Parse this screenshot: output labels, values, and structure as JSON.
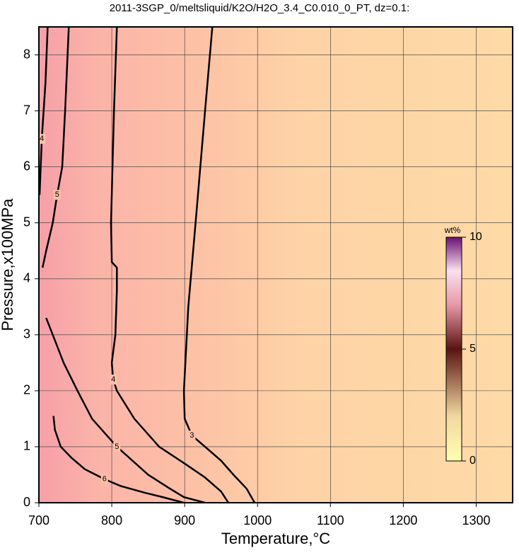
{
  "chart_data": {
    "type": "contour",
    "title": "2011-3SGP_0/meltsliquid/K2O/H2O_3.4_C0.010_0_PT, dz=0.1:",
    "xlabel": "Temperature,°C",
    "ylabel": "Pressure,x100MPa",
    "xlim": [
      700,
      1350
    ],
    "ylim": [
      0,
      8.5
    ],
    "xticks": [
      700,
      800,
      900,
      1000,
      1100,
      1200,
      1300
    ],
    "yticks": [
      0,
      1,
      2,
      3,
      4,
      5,
      6,
      7,
      8
    ],
    "grid": true,
    "contours": [
      {
        "level": 3,
        "x": [
          938,
          928,
          915,
          905,
          899,
          900,
          910,
          928,
          950,
          967,
          985,
          996
        ],
        "y": [
          8.5,
          7,
          5,
          3.5,
          2,
          1.5,
          1.2,
          1,
          0.75,
          0.5,
          0.25,
          0
        ]
      },
      {
        "level": 4,
        "x": [
          807,
          803,
          799,
          800,
          807,
          807,
          805,
          800,
          802,
          807,
          831,
          865,
          900,
          928,
          950,
          960
        ],
        "y": [
          8.5,
          7,
          5,
          4.3,
          4.2,
          3.8,
          3,
          2.5,
          2.2,
          2,
          1.5,
          1,
          0.7,
          0.45,
          0.2,
          0
        ]
      },
      {
        "level": 4,
        "x": [
          712,
          709,
          704,
          701
        ],
        "y": [
          8.5,
          7.5,
          6.5,
          5.5
        ]
      },
      {
        "level": 5,
        "x": [
          741,
          736,
          732,
          725,
          719,
          710,
          705
        ],
        "y": [
          8.5,
          7,
          6,
          5.5,
          5,
          4.5,
          4.2
        ]
      },
      {
        "level": 5,
        "x": [
          710,
          719,
          734,
          753,
          773,
          807,
          850,
          880,
          899,
          928
        ],
        "y": [
          3.3,
          3,
          2.5,
          2,
          1.5,
          1,
          0.5,
          0.25,
          0.1,
          0
        ]
      },
      {
        "level": 6,
        "x": [
          720,
          722,
          730,
          745,
          763,
          790,
          812,
          845,
          870,
          899
        ],
        "y": [
          1.55,
          1.3,
          1,
          0.8,
          0.6,
          0.42,
          0.3,
          0.18,
          0.1,
          0
        ]
      }
    ],
    "colorbar": {
      "label": "wt%",
      "lim": [
        0,
        10
      ],
      "ticks": [
        0,
        5,
        10
      ]
    }
  }
}
